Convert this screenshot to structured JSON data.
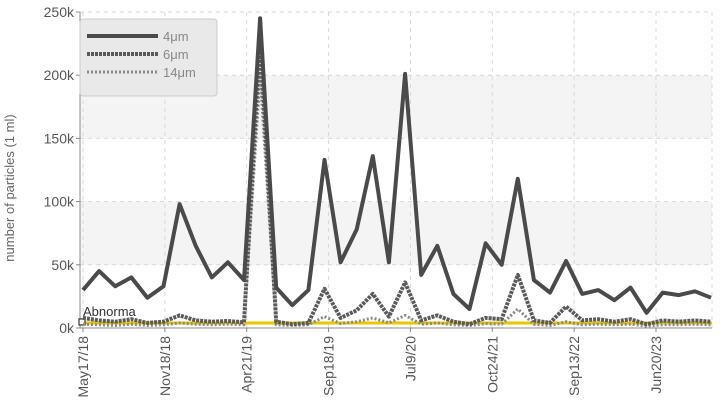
{
  "chart_data": {
    "type": "line",
    "ylabel": "number of particles (1 ml)",
    "ylim": [
      0,
      250000
    ],
    "yticks": [
      0,
      50000,
      100000,
      150000,
      200000,
      250000
    ],
    "yticklabels": [
      "0k",
      "50k",
      "100k",
      "150k",
      "200k",
      "250k"
    ],
    "xticklabels": [
      "May17/18",
      "Nov18/18",
      "Apr21/19",
      "Sep18/19",
      "Jul9/20",
      "Oct24/21",
      "Sep13/22",
      "Jun20/23"
    ],
    "legend_position": "top-left",
    "series": [
      {
        "name": "4μm",
        "color": "#4a4a4a",
        "style": "solid",
        "values": [
          30000,
          45000,
          33000,
          40000,
          24000,
          33000,
          98000,
          65000,
          40000,
          52000,
          38000,
          245000,
          32000,
          18000,
          30000,
          133000,
          52000,
          78000,
          136000,
          52000,
          201000,
          42000,
          65000,
          27000,
          15000,
          67000,
          50000,
          118000,
          38000,
          28000,
          53000,
          27000,
          30000,
          22000,
          32000,
          12000,
          28000,
          26000,
          29000,
          24000
        ]
      },
      {
        "name": "6μm",
        "color": "#5a5a5a",
        "style": "dense",
        "values": [
          8000,
          6000,
          5000,
          7000,
          4000,
          5000,
          10000,
          6000,
          5000,
          5500,
          4500,
          230000,
          5000,
          3000,
          4000,
          31000,
          8000,
          14000,
          27000,
          9000,
          36000,
          6000,
          10000,
          5000,
          3000,
          8000,
          7000,
          42000,
          6000,
          4000,
          17000,
          6000,
          7000,
          5000,
          7000,
          3000,
          6000,
          5000,
          6000,
          5000
        ]
      },
      {
        "name": "14μm",
        "color": "#8a8a8a",
        "style": "dotted",
        "values": [
          3000,
          2500,
          2000,
          3000,
          2000,
          2500,
          4000,
          3000,
          2500,
          3000,
          2500,
          200000,
          2500,
          2000,
          2500,
          9000,
          3500,
          5000,
          8000,
          4000,
          10000,
          3000,
          4000,
          2500,
          2000,
          3500,
          3000,
          15000,
          3000,
          2000,
          5000,
          2500,
          3000,
          2500,
          3000,
          1500,
          2500,
          2500,
          3000,
          2500
        ]
      }
    ],
    "threshold": {
      "label": "Abnorma",
      "value": 4000,
      "color": "#e8c800"
    }
  }
}
